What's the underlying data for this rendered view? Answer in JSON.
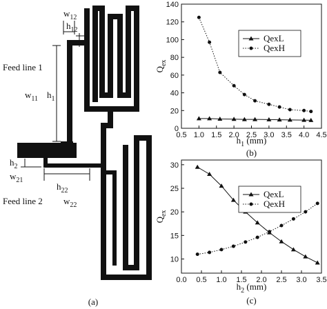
{
  "diagram": {
    "labels": [
      [
        "w",
        "12"
      ],
      [
        "h",
        "12"
      ],
      [
        "Feed line 1"
      ],
      [
        "w",
        "11"
      ],
      [
        "h",
        "1"
      ],
      [
        "h",
        "2"
      ],
      [
        "w",
        "21"
      ],
      [
        "h",
        "22"
      ],
      [
        "Feed line 2"
      ],
      [
        "w",
        "22"
      ]
    ],
    "caption": "(a)"
  },
  "chart_data": [
    {
      "type": "line",
      "caption": "(b)",
      "x_label": [
        "h",
        "1",
        " (mm)"
      ],
      "y_label": [
        "Q",
        "ex"
      ],
      "x": [
        1.0,
        1.3,
        1.6,
        2.0,
        2.3,
        2.6,
        3.0,
        3.3,
        3.6,
        4.0,
        4.2
      ],
      "series": [
        {
          "name": "QexL",
          "color": "#111111",
          "marker": "triangle",
          "dash": "solid",
          "values": [
            11,
            11,
            10.5,
            10.3,
            10,
            10,
            9.8,
            9.6,
            9.4,
            9.2,
            9
          ]
        },
        {
          "name": "QexH",
          "color": "#111111",
          "marker": "circle",
          "dash": "dotted",
          "values": [
            125,
            97,
            63,
            48,
            38,
            31,
            27,
            24,
            21,
            20,
            19
          ]
        }
      ],
      "xlim": [
        0.5,
        4.5
      ],
      "xticks": [
        0.5,
        {
          "value": 1,
          "label": "1.0"
        },
        1.5,
        {
          "value": 2,
          "label": "2.0"
        },
        2.5,
        {
          "value": 3,
          "label": "3.0"
        },
        3.5,
        {
          "value": 4,
          "label": "4.0"
        },
        4.5
      ],
      "ylim": [
        0,
        140
      ],
      "yticks": [
        0,
        20,
        40,
        60,
        80,
        100,
        120,
        140
      ],
      "legend": "upper right"
    },
    {
      "type": "line",
      "caption": "(c)",
      "x_label": [
        "h",
        "2",
        " (mm)"
      ],
      "y_label": [
        "Q",
        "ex"
      ],
      "x": [
        0.4,
        0.7,
        1.0,
        1.3,
        1.6,
        1.9,
        2.2,
        2.5,
        2.8,
        3.1,
        3.4
      ],
      "series": [
        {
          "name": "QexL",
          "color": "#111111",
          "marker": "triangle",
          "dash": "solid",
          "values": [
            29.5,
            28,
            25.5,
            22.5,
            20,
            17.7,
            15.6,
            13.7,
            12,
            10.5,
            9.2
          ]
        },
        {
          "name": "QexH",
          "color": "#111111",
          "marker": "circle",
          "dash": "dotted",
          "values": [
            11,
            11.4,
            12,
            12.7,
            13.6,
            14.6,
            15.8,
            17.1,
            18.5,
            20,
            21.8
          ]
        }
      ],
      "xlim": [
        0,
        3.5
      ],
      "xticks": [
        {
          "value": 0,
          "label": "0.0"
        },
        0.5,
        {
          "value": 1,
          "label": "1.0"
        },
        1.5,
        {
          "value": 2,
          "label": "2.0"
        },
        2.5,
        {
          "value": 3,
          "label": "3.0"
        },
        3.5
      ],
      "ylim": [
        7,
        31
      ],
      "yticks": [
        10,
        15,
        20,
        25,
        30
      ],
      "legend": "upper right"
    }
  ]
}
